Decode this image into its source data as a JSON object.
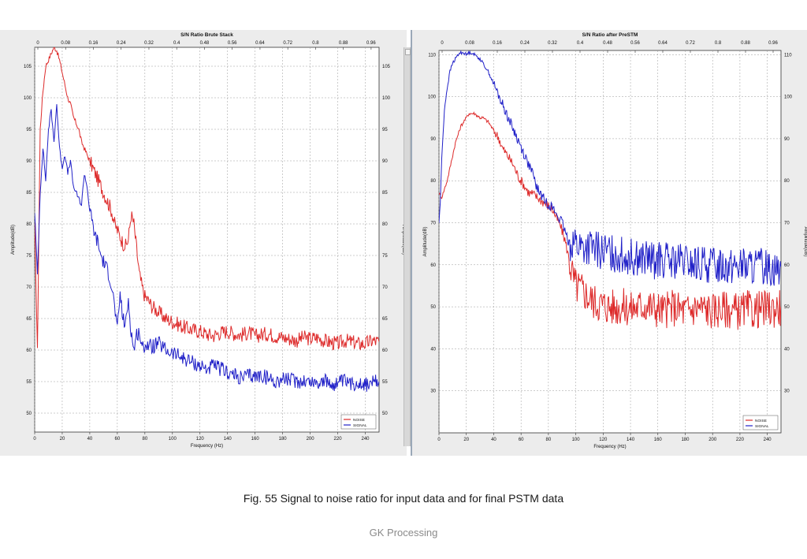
{
  "caption": "Fig. 55 Signal to noise ratio for input data and for final PSTM data",
  "footer": "GK Processing",
  "colors": {
    "noise": "#dd2a2a",
    "signal": "#2121c8",
    "grid": "#9a9a9a",
    "plot_bg": "#ffffff"
  },
  "chart_data": [
    {
      "type": "line",
      "title": "S/N Ratio Brute Stack",
      "xlabel": "Frequency (Hz)",
      "ylabel": "Amplitude(dB)",
      "xlim": [
        0,
        250
      ],
      "ylim": [
        47,
        108
      ],
      "x_ticks": [
        0,
        20,
        40,
        60,
        80,
        100,
        120,
        140,
        160,
        180,
        200,
        220,
        240
      ],
      "y_ticks": [
        50,
        55,
        60,
        65,
        70,
        75,
        80,
        85,
        90,
        95,
        100,
        105
      ],
      "top_axis_ticks": [
        "0",
        "0.08",
        "0.16",
        "0.24",
        "0.32",
        "0.4",
        "0.48",
        "0.56",
        "0.64",
        "0.72",
        "0.8",
        "0.88",
        "0.96"
      ],
      "grid": true,
      "legend": "bottom-right",
      "series": [
        {
          "name": "NOISE",
          "color": "#dd2a2a",
          "x": [
            0,
            2,
            4,
            6,
            8,
            10,
            12,
            14,
            16,
            18,
            20,
            22,
            24,
            26,
            28,
            30,
            32,
            34,
            36,
            38,
            40,
            42,
            44,
            46,
            48,
            50,
            52,
            54,
            56,
            58,
            60,
            62,
            64,
            66,
            68,
            70,
            72,
            74,
            76,
            78,
            80,
            82,
            85,
            90,
            95,
            100,
            105,
            110,
            115,
            120,
            125,
            130,
            135,
            140,
            145,
            150,
            155,
            160,
            165,
            170,
            175,
            180,
            185,
            190,
            195,
            200,
            205,
            210,
            215,
            220,
            225,
            230,
            235,
            240,
            245,
            250
          ],
          "y": [
            80,
            60,
            95,
            101,
            105,
            106,
            107,
            108,
            107.5,
            106,
            104,
            102,
            100,
            99,
            97,
            96,
            95,
            93,
            92,
            91,
            90,
            89,
            88,
            87,
            86,
            85,
            84,
            83,
            82,
            80,
            79,
            78,
            77,
            76.5,
            77.5,
            81.5,
            80,
            76,
            72,
            70,
            68.5,
            68,
            67,
            66,
            65,
            64.5,
            64,
            63.5,
            63.2,
            63,
            62.5,
            62.3,
            62.8,
            63,
            62.6,
            62.4,
            62.8,
            62.2,
            62.5,
            62.6,
            62.2,
            62,
            61.8,
            61.5,
            62,
            61.8,
            62,
            61.5,
            61.2,
            61,
            61.5,
            61.3,
            61,
            61,
            61.5,
            61.3
          ]
        },
        {
          "name": "SIGNAL",
          "color": "#2121c8",
          "x": [
            0,
            2,
            4,
            6,
            8,
            10,
            12,
            14,
            16,
            18,
            20,
            22,
            24,
            26,
            28,
            30,
            32,
            34,
            36,
            38,
            40,
            42,
            44,
            46,
            48,
            50,
            52,
            54,
            56,
            58,
            60,
            62,
            64,
            66,
            68,
            70,
            72,
            74,
            76,
            78,
            80,
            85,
            90,
            95,
            100,
            105,
            110,
            115,
            120,
            125,
            130,
            135,
            140,
            145,
            150,
            155,
            160,
            165,
            170,
            175,
            180,
            185,
            190,
            195,
            200,
            205,
            210,
            215,
            220,
            225,
            230,
            235,
            240,
            245,
            250
          ],
          "y": [
            82,
            72,
            85,
            92,
            87,
            95,
            98,
            93,
            99,
            92,
            89,
            91,
            88,
            90,
            86,
            85,
            84,
            83,
            88,
            86,
            82,
            80,
            78,
            77,
            75,
            74,
            73,
            72,
            70,
            67,
            63,
            69,
            65,
            64,
            68,
            63,
            60,
            62.5,
            63,
            60,
            61,
            60.5,
            61,
            60,
            59.5,
            59,
            58.5,
            58,
            57.5,
            57,
            57.5,
            57,
            56.5,
            56,
            55.5,
            56,
            55.8,
            56,
            55.5,
            55,
            55.5,
            55.3,
            55,
            55.2,
            55,
            54.8,
            55.2,
            54.5,
            54.8,
            55,
            54.5,
            55,
            54.5,
            54.8,
            55
          ]
        }
      ]
    },
    {
      "type": "line",
      "title": "S/N Ratio after PreSTM",
      "xlabel": "Frequency (Hz)",
      "ylabel": "Amplitude(dB)",
      "xlim": [
        0,
        250
      ],
      "ylim": [
        20,
        111
      ],
      "x_ticks": [
        0,
        20,
        40,
        60,
        80,
        100,
        120,
        140,
        160,
        180,
        200,
        220,
        240
      ],
      "y_ticks": [
        30,
        40,
        50,
        60,
        70,
        80,
        90,
        100,
        110
      ],
      "top_axis_ticks": [
        "0",
        "0.08",
        "0.16",
        "0.24",
        "0.32",
        "0.4",
        "0.48",
        "0.56",
        "0.64",
        "0.72",
        "0.8",
        "0.88",
        "0.96"
      ],
      "grid": true,
      "legend": "bottom-right",
      "series": [
        {
          "name": "NOISE",
          "color": "#dd2a2a",
          "x": [
            0,
            2,
            4,
            6,
            8,
            10,
            12,
            14,
            16,
            18,
            20,
            22,
            24,
            26,
            28,
            30,
            32,
            34,
            36,
            38,
            40,
            42,
            44,
            46,
            48,
            50,
            52,
            54,
            56,
            58,
            60,
            62,
            64,
            66,
            68,
            70,
            72,
            74,
            76,
            78,
            80,
            82,
            84,
            86,
            88,
            90,
            92,
            94,
            96,
            98,
            100,
            105,
            110,
            115,
            120,
            125,
            130,
            135,
            140,
            145,
            150,
            155,
            160,
            165,
            170,
            175,
            180,
            185,
            190,
            195,
            200,
            205,
            210,
            215,
            220,
            225,
            230,
            235,
            240,
            245,
            250
          ],
          "y": [
            77,
            76,
            78,
            80,
            83,
            86,
            89,
            91,
            93,
            94,
            95,
            96,
            96,
            96,
            95.5,
            95,
            95,
            94.5,
            94,
            93,
            92,
            91,
            90,
            88,
            87,
            86,
            85,
            84,
            82.5,
            81,
            80,
            79,
            78,
            77,
            77,
            76.5,
            76,
            75.5,
            75,
            74.5,
            74,
            73.5,
            72.5,
            71,
            70,
            68,
            66,
            63,
            60,
            57,
            55,
            54,
            52,
            51,
            50.5,
            50,
            50,
            50,
            49.5,
            50,
            50.5,
            50,
            49.5,
            49,
            50,
            49.5,
            49,
            49.5,
            50,
            49.5,
            49,
            49.5,
            49.5,
            49,
            49,
            49.5,
            49,
            49.5,
            49.5,
            49.5,
            50
          ]
        },
        {
          "name": "SIGNAL",
          "color": "#2121c8",
          "x": [
            0,
            1,
            2,
            4,
            6,
            8,
            10,
            12,
            14,
            16,
            18,
            20,
            22,
            24,
            26,
            28,
            30,
            32,
            34,
            36,
            38,
            40,
            42,
            44,
            46,
            48,
            50,
            52,
            54,
            56,
            58,
            60,
            62,
            64,
            66,
            68,
            70,
            72,
            74,
            76,
            78,
            80,
            82,
            84,
            86,
            88,
            90,
            92,
            94,
            96,
            98,
            100,
            105,
            110,
            115,
            120,
            125,
            130,
            135,
            140,
            145,
            150,
            155,
            160,
            165,
            170,
            175,
            180,
            185,
            190,
            195,
            200,
            205,
            210,
            215,
            220,
            225,
            230,
            235,
            240,
            245,
            250
          ],
          "y": [
            70,
            75,
            85,
            97,
            102,
            106,
            108,
            109,
            110,
            110.5,
            110.5,
            110,
            110.5,
            110.5,
            110,
            109.5,
            109,
            108,
            107,
            106,
            104.5,
            103,
            101.5,
            100,
            98.5,
            97,
            95.5,
            94,
            92.5,
            91,
            89.5,
            88,
            86.5,
            85,
            83.5,
            82,
            80,
            78,
            77,
            76,
            75,
            74.5,
            74,
            73,
            72,
            71,
            70,
            68,
            66,
            65,
            66,
            65,
            64,
            64,
            63.5,
            63,
            63,
            62.5,
            62,
            62,
            61.5,
            61.5,
            61,
            61,
            61,
            60.5,
            60.5,
            60.5,
            60,
            60,
            60,
            60,
            60,
            60,
            60,
            60,
            59.5,
            59.5,
            59.5,
            59.5,
            59.5,
            59.5
          ]
        }
      ]
    }
  ]
}
